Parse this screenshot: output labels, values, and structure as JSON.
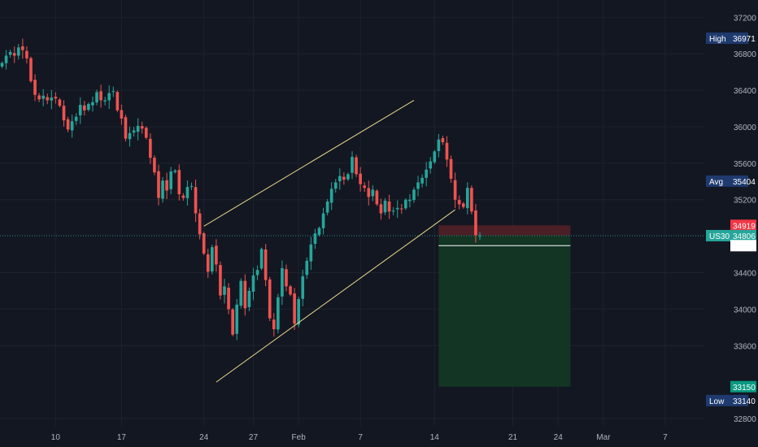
{
  "chart_data": {
    "type": "candlestick",
    "symbol": "US30",
    "colors": {
      "background": "#131722",
      "grid": "#1e222d",
      "up": "#26a69a",
      "down": "#ef5350",
      "channel": "#e8d889",
      "price_line": "#26a69a",
      "stop_zone": "#4a1f26",
      "target_zone": "#123524",
      "axis_label_bg": "#1e3a6e",
      "text": "#b2b5be"
    },
    "x_ticks": [
      {
        "label": "10",
        "idx": 13
      },
      {
        "label": "17",
        "idx": 29
      },
      {
        "label": "24",
        "idx": 49
      },
      {
        "label": "27",
        "idx": 61
      },
      {
        "label": "Feb",
        "idx": 72
      },
      {
        "label": "7",
        "idx": 87
      },
      {
        "label": "14",
        "idx": 105
      },
      {
        "label": "21",
        "idx": 124
      },
      {
        "label": "24",
        "idx": 135
      },
      {
        "label": "Mar",
        "idx": 146
      },
      {
        "label": "7",
        "idx": 161
      }
    ],
    "y_ticks": [
      37200,
      36800,
      36400,
      36000,
      35600,
      35200,
      34400,
      34000,
      33600,
      32800
    ],
    "ylim": [
      32720,
      37390
    ],
    "total_slots": 171,
    "close_series": [
      36700,
      36780,
      36820,
      36780,
      36870,
      36840,
      36750,
      36500,
      36350,
      36300,
      36340,
      36290,
      36320,
      36310,
      36230,
      36070,
      35970,
      36060,
      36110,
      36240,
      36180,
      36250,
      36270,
      36380,
      36290,
      36290,
      36370,
      36390,
      36180,
      36090,
      35870,
      35930,
      35960,
      36010,
      35980,
      35880,
      35660,
      35500,
      35220,
      35410,
      35300,
      35510,
      35520,
      35260,
      35220,
      35340,
      35350,
      35050,
      34820,
      34610,
      34410,
      34680,
      34490,
      34150,
      34250,
      34000,
      33720,
      34050,
      34310,
      34010,
      34200,
      34370,
      34430,
      34660,
      34320,
      33900,
      33780,
      34130,
      34450,
      34250,
      34160,
      33840,
      34110,
      34360,
      34530,
      34710,
      34830,
      34890,
      35050,
      35180,
      35320,
      35390,
      35460,
      35420,
      35480,
      35670,
      35480,
      35370,
      35330,
      35230,
      35310,
      35150,
      35050,
      35190,
      35070,
      35080,
      35110,
      35100,
      35200,
      35200,
      35310,
      35390,
      35440,
      35530,
      35620,
      35730,
      35860,
      35830,
      35640,
      35430,
      35200,
      35150,
      35120,
      35330,
      35070,
      34810,
      34806
    ],
    "channel_upper": [
      [
        49,
        34910
      ],
      [
        100,
        36290
      ]
    ],
    "channel_lower": [
      [
        52,
        33200
      ],
      [
        110,
        35090
      ]
    ],
    "position": {
      "entry": 34806,
      "stop": 34919,
      "stop_edge": 34696,
      "target": 33150,
      "start_idx": 106,
      "end_idx": 138
    },
    "labels": {
      "high_name": "High",
      "high_value": "36971",
      "avg_name": "Avg",
      "avg_value": "35404",
      "stop_value": "34919",
      "symbol_name": "US30",
      "price_value": "34806",
      "edge_value": "34696",
      "target_value": "33150",
      "low_name": "Low",
      "low_value": "33140"
    }
  }
}
